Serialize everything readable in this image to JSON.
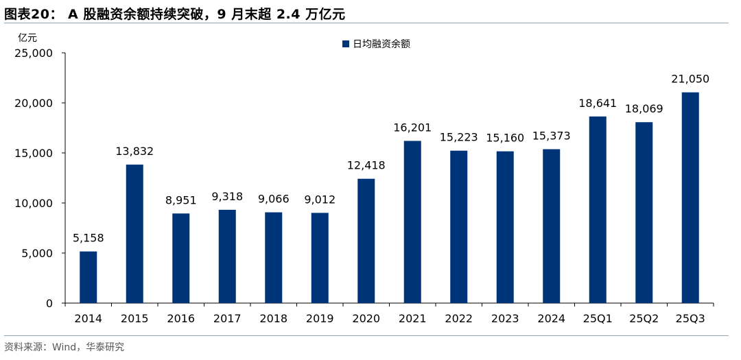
{
  "title": "图表20：  A 股融资余额持续突破，9 月末超 2.4 万亿元",
  "source": "资料来源：Wind，华泰研究",
  "colors": {
    "bar": "#003479",
    "rule": "#8fa3b8",
    "axis": "#000000"
  },
  "chart_data": {
    "type": "bar",
    "title": "",
    "ylabel": "亿元",
    "xlabel": "",
    "ylim": [
      0,
      25000
    ],
    "yticks": [
      0,
      5000,
      10000,
      15000,
      20000,
      25000
    ],
    "ytick_labels": [
      "0",
      "5,000",
      "10,000",
      "15,000",
      "20,000",
      "25,000"
    ],
    "grid": false,
    "legend_position": "top-center",
    "categories": [
      "2014",
      "2015",
      "2016",
      "2017",
      "2018",
      "2019",
      "2020",
      "2021",
      "2022",
      "2023",
      "2024",
      "25Q1",
      "25Q2",
      "25Q3"
    ],
    "series": [
      {
        "name": "日均融资余额",
        "values": [
          5158,
          13832,
          8951,
          9318,
          9066,
          9012,
          12418,
          16201,
          15223,
          15160,
          15373,
          18641,
          18069,
          21050
        ],
        "labels": [
          "5,158",
          "13,832",
          "8,951",
          "9,318",
          "9,066",
          "9,012",
          "12,418",
          "16,201",
          "15,223",
          "15,160",
          "15,373",
          "18,641",
          "18,069",
          "21,050"
        ]
      }
    ]
  }
}
